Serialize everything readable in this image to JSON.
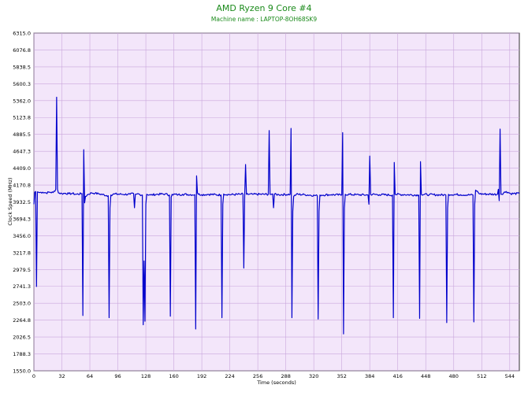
{
  "chart_data": {
    "type": "line",
    "title": "AMD Ryzen 9 Core #4",
    "subtitle": "Machine name : LAPTOP-8OH68SK9",
    "xlabel": "Time (seconds)",
    "ylabel": "Clock Speed (MHz)",
    "xlim": [
      0,
      555
    ],
    "ylim": [
      1550.0,
      6315.0
    ],
    "x_ticks": [
      0,
      32,
      64,
      96,
      128,
      160,
      192,
      224,
      256,
      288,
      320,
      352,
      384,
      416,
      448,
      480,
      512,
      544
    ],
    "y_ticks": [
      "1550.0",
      "1788.3",
      "2026.5",
      "2264.8",
      "2503.0",
      "2741.3",
      "2979.5",
      "3217.8",
      "3456.0",
      "3694.3",
      "3932.5",
      "4170.8",
      "4409.0",
      "4647.3",
      "4885.5",
      "5123.8",
      "5362.0",
      "5600.3",
      "5838.5",
      "6076.8",
      "6315.0"
    ],
    "grid": true,
    "colors": {
      "line": "#0000cc",
      "plot_bg": "#f3e6fa",
      "grid": "#c9a6dc",
      "title": "#1a8a1a"
    },
    "baseline_mhz": 4045,
    "series": [
      {
        "points": [
          [
            0,
            3900
          ],
          [
            1,
            4070
          ],
          [
            2,
            4080
          ],
          [
            3,
            2740
          ],
          [
            4,
            4075
          ],
          [
            6,
            4065
          ],
          [
            10,
            4070
          ],
          [
            14,
            4060
          ],
          [
            18,
            4070
          ],
          [
            22,
            4065
          ],
          [
            25,
            4110
          ],
          [
            26,
            5410
          ],
          [
            27,
            4110
          ],
          [
            28,
            4060
          ],
          [
            32,
            4050
          ],
          [
            36,
            4055
          ],
          [
            40,
            4048
          ],
          [
            44,
            4052
          ],
          [
            48,
            4040
          ],
          [
            55,
            4050
          ],
          [
            56,
            2330
          ],
          [
            57,
            4670
          ],
          [
            58,
            3920
          ],
          [
            59,
            4010
          ],
          [
            62,
            4040
          ],
          [
            66,
            4060
          ],
          [
            70,
            4055
          ],
          [
            75,
            4045
          ],
          [
            85,
            4020
          ],
          [
            86,
            2300
          ],
          [
            87,
            3850
          ],
          [
            88,
            4030
          ],
          [
            92,
            4045
          ],
          [
            100,
            4040
          ],
          [
            110,
            4040
          ],
          [
            114,
            4050
          ],
          [
            115,
            3850
          ],
          [
            116,
            4040
          ],
          [
            118,
            4045
          ],
          [
            124,
            4030
          ],
          [
            125,
            2200
          ],
          [
            126,
            3100
          ],
          [
            127,
            2250
          ],
          [
            128,
            3900
          ],
          [
            129,
            4040
          ],
          [
            134,
            4030
          ],
          [
            140,
            4040
          ],
          [
            150,
            4045
          ],
          [
            155,
            4030
          ],
          [
            156,
            2320
          ],
          [
            157,
            4000
          ],
          [
            158,
            4040
          ],
          [
            165,
            4035
          ],
          [
            170,
            4040
          ],
          [
            184,
            4035
          ],
          [
            185,
            2140
          ],
          [
            186,
            4300
          ],
          [
            187,
            4060
          ],
          [
            188,
            4040
          ],
          [
            192,
            4035
          ],
          [
            200,
            4040
          ],
          [
            214,
            4030
          ],
          [
            215,
            2300
          ],
          [
            216,
            3900
          ],
          [
            217,
            4045
          ],
          [
            224,
            4035
          ],
          [
            236,
            4040
          ],
          [
            239,
            4045
          ],
          [
            240,
            3000
          ],
          [
            241,
            4010
          ],
          [
            242,
            4460
          ],
          [
            243,
            4040
          ],
          [
            250,
            4040
          ],
          [
            268,
            4040
          ],
          [
            269,
            4940
          ],
          [
            270,
            4040
          ],
          [
            273,
            4045
          ],
          [
            274,
            3850
          ],
          [
            275,
            4040
          ],
          [
            280,
            4035
          ],
          [
            293,
            4040
          ],
          [
            294,
            4970
          ],
          [
            295,
            2300
          ],
          [
            296,
            3800
          ],
          [
            297,
            4010
          ],
          [
            300,
            4040
          ],
          [
            310,
            4035
          ],
          [
            324,
            4020
          ],
          [
            325,
            2280
          ],
          [
            326,
            3800
          ],
          [
            327,
            4030
          ],
          [
            340,
            4035
          ],
          [
            352,
            4030
          ],
          [
            353,
            4910
          ],
          [
            354,
            2070
          ],
          [
            355,
            3850
          ],
          [
            356,
            4040
          ],
          [
            368,
            4035
          ],
          [
            382,
            4030
          ],
          [
            383,
            3900
          ],
          [
            384,
            4580
          ],
          [
            385,
            4040
          ],
          [
            395,
            4035
          ],
          [
            410,
            4030
          ],
          [
            411,
            2300
          ],
          [
            412,
            4490
          ],
          [
            413,
            4040
          ],
          [
            424,
            4035
          ],
          [
            440,
            4030
          ],
          [
            441,
            2290
          ],
          [
            442,
            4500
          ],
          [
            443,
            4040
          ],
          [
            452,
            4035
          ],
          [
            471,
            4030
          ],
          [
            472,
            2230
          ],
          [
            473,
            3850
          ],
          [
            474,
            4040
          ],
          [
            488,
            4035
          ],
          [
            502,
            4030
          ],
          [
            503,
            2240
          ],
          [
            504,
            3900
          ],
          [
            505,
            4100
          ],
          [
            510,
            4045
          ],
          [
            530,
            4040
          ],
          [
            531,
            4110
          ],
          [
            532,
            3950
          ],
          [
            533,
            4960
          ],
          [
            534,
            4040
          ],
          [
            540,
            4080
          ],
          [
            545,
            4050
          ],
          [
            555,
            4050
          ]
        ]
      }
    ]
  }
}
